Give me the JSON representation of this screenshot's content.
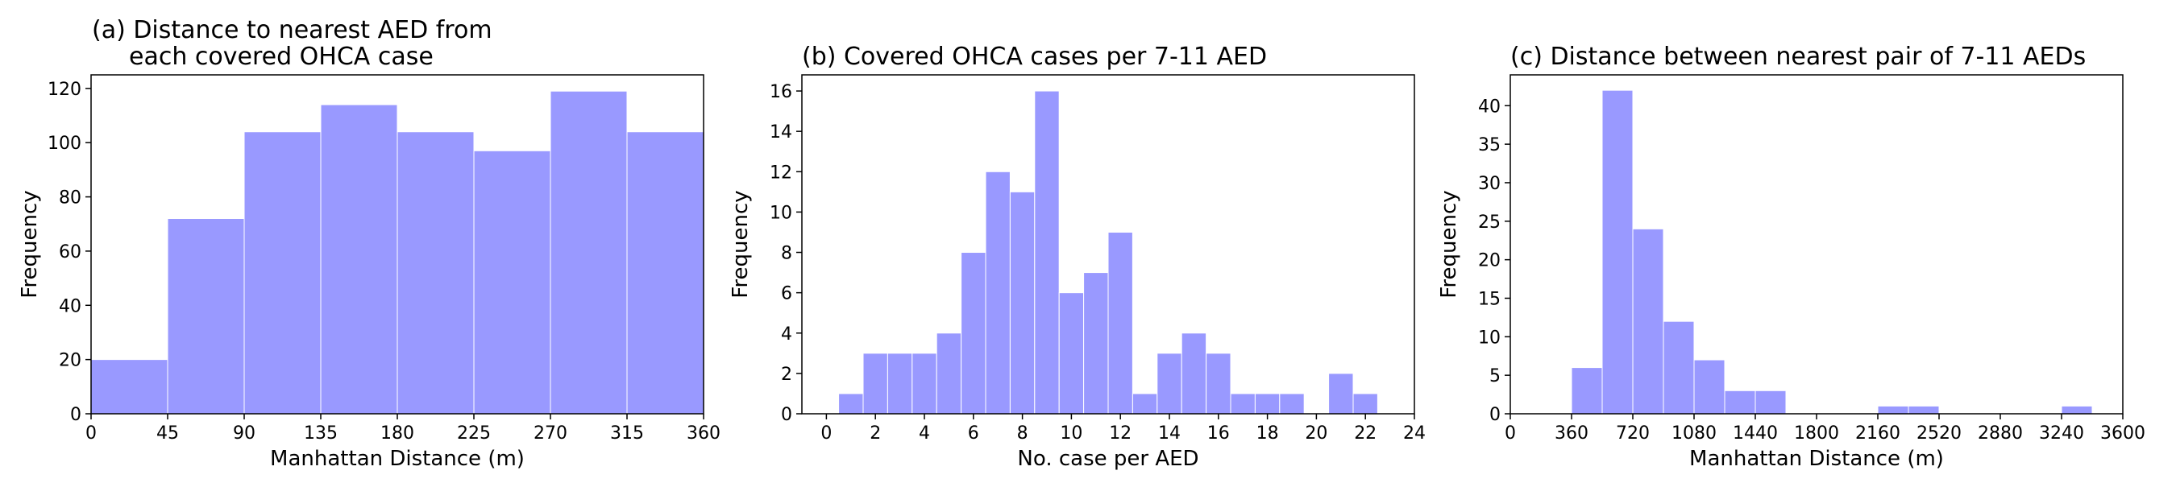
{
  "bar_color": "#9999ff",
  "bar_edge_color": "#ffffff",
  "chart_data": [
    {
      "type": "bar",
      "title_lines": [
        "(a) Distance to nearest AED from",
        "each covered OHCA case"
      ],
      "xlabel": "Manhattan Distance (m)",
      "ylabel": "Frequency",
      "xlim": [
        0,
        360
      ],
      "ylim": [
        0,
        125
      ],
      "xticks": [
        0,
        45,
        90,
        135,
        180,
        225,
        270,
        315,
        360
      ],
      "yticks": [
        0,
        20,
        40,
        60,
        80,
        100,
        120
      ],
      "bins": [
        {
          "x0": 0,
          "x1": 45,
          "y": 20
        },
        {
          "x0": 45,
          "x1": 90,
          "y": 72
        },
        {
          "x0": 90,
          "x1": 135,
          "y": 104
        },
        {
          "x0": 135,
          "x1": 180,
          "y": 114
        },
        {
          "x0": 180,
          "x1": 225,
          "y": 104
        },
        {
          "x0": 225,
          "x1": 270,
          "y": 97
        },
        {
          "x0": 270,
          "x1": 315,
          "y": 119
        },
        {
          "x0": 315,
          "x1": 360,
          "y": 104
        }
      ]
    },
    {
      "type": "bar",
      "title_lines": [
        "(b) Covered OHCA cases per 7-11 AED"
      ],
      "xlabel": "No. case per AED",
      "ylabel": "Frequency",
      "xlim": [
        -1,
        24
      ],
      "ylim": [
        0,
        16.8
      ],
      "xticks": [
        0,
        2,
        4,
        6,
        8,
        10,
        12,
        14,
        16,
        18,
        20,
        22,
        24
      ],
      "yticks": [
        0,
        2,
        4,
        6,
        8,
        10,
        12,
        14,
        16
      ],
      "bins": [
        {
          "x0": 0.5,
          "x1": 1.5,
          "y": 1
        },
        {
          "x0": 1.5,
          "x1": 2.5,
          "y": 3
        },
        {
          "x0": 2.5,
          "x1": 3.5,
          "y": 3
        },
        {
          "x0": 3.5,
          "x1": 4.5,
          "y": 3
        },
        {
          "x0": 4.5,
          "x1": 5.5,
          "y": 4
        },
        {
          "x0": 5.5,
          "x1": 6.5,
          "y": 8
        },
        {
          "x0": 6.5,
          "x1": 7.5,
          "y": 12
        },
        {
          "x0": 7.5,
          "x1": 8.5,
          "y": 11
        },
        {
          "x0": 8.5,
          "x1": 9.5,
          "y": 16
        },
        {
          "x0": 9.5,
          "x1": 10.5,
          "y": 6
        },
        {
          "x0": 10.5,
          "x1": 11.5,
          "y": 7
        },
        {
          "x0": 11.5,
          "x1": 12.5,
          "y": 9
        },
        {
          "x0": 12.5,
          "x1": 13.5,
          "y": 1
        },
        {
          "x0": 13.5,
          "x1": 14.5,
          "y": 3
        },
        {
          "x0": 14.5,
          "x1": 15.5,
          "y": 4
        },
        {
          "x0": 15.5,
          "x1": 16.5,
          "y": 3
        },
        {
          "x0": 16.5,
          "x1": 17.5,
          "y": 1
        },
        {
          "x0": 17.5,
          "x1": 18.5,
          "y": 1
        },
        {
          "x0": 18.5,
          "x1": 19.5,
          "y": 1
        },
        {
          "x0": 19.5,
          "x1": 20.5,
          "y": 0
        },
        {
          "x0": 20.5,
          "x1": 21.5,
          "y": 2
        },
        {
          "x0": 21.5,
          "x1": 22.5,
          "y": 1
        }
      ]
    },
    {
      "type": "bar",
      "title_lines": [
        "(c) Distance between nearest pair of 7-11 AEDs"
      ],
      "xlabel": "Manhattan Distance (m)",
      "ylabel": "Frequency",
      "xlim": [
        0,
        3600
      ],
      "ylim": [
        0,
        44
      ],
      "xticks": [
        0,
        360,
        720,
        1080,
        1440,
        1800,
        2160,
        2520,
        2880,
        3240,
        3600
      ],
      "yticks": [
        0,
        5,
        10,
        15,
        20,
        25,
        30,
        35,
        40
      ],
      "bins": [
        {
          "x0": 360,
          "x1": 540,
          "y": 6
        },
        {
          "x0": 540,
          "x1": 720,
          "y": 42
        },
        {
          "x0": 720,
          "x1": 900,
          "y": 24
        },
        {
          "x0": 900,
          "x1": 1080,
          "y": 12
        },
        {
          "x0": 1080,
          "x1": 1260,
          "y": 7
        },
        {
          "x0": 1260,
          "x1": 1440,
          "y": 3
        },
        {
          "x0": 1440,
          "x1": 1620,
          "y": 3
        },
        {
          "x0": 2160,
          "x1": 2340,
          "y": 1
        },
        {
          "x0": 2340,
          "x1": 2520,
          "y": 1
        },
        {
          "x0": 3240,
          "x1": 3420,
          "y": 1
        }
      ]
    }
  ]
}
